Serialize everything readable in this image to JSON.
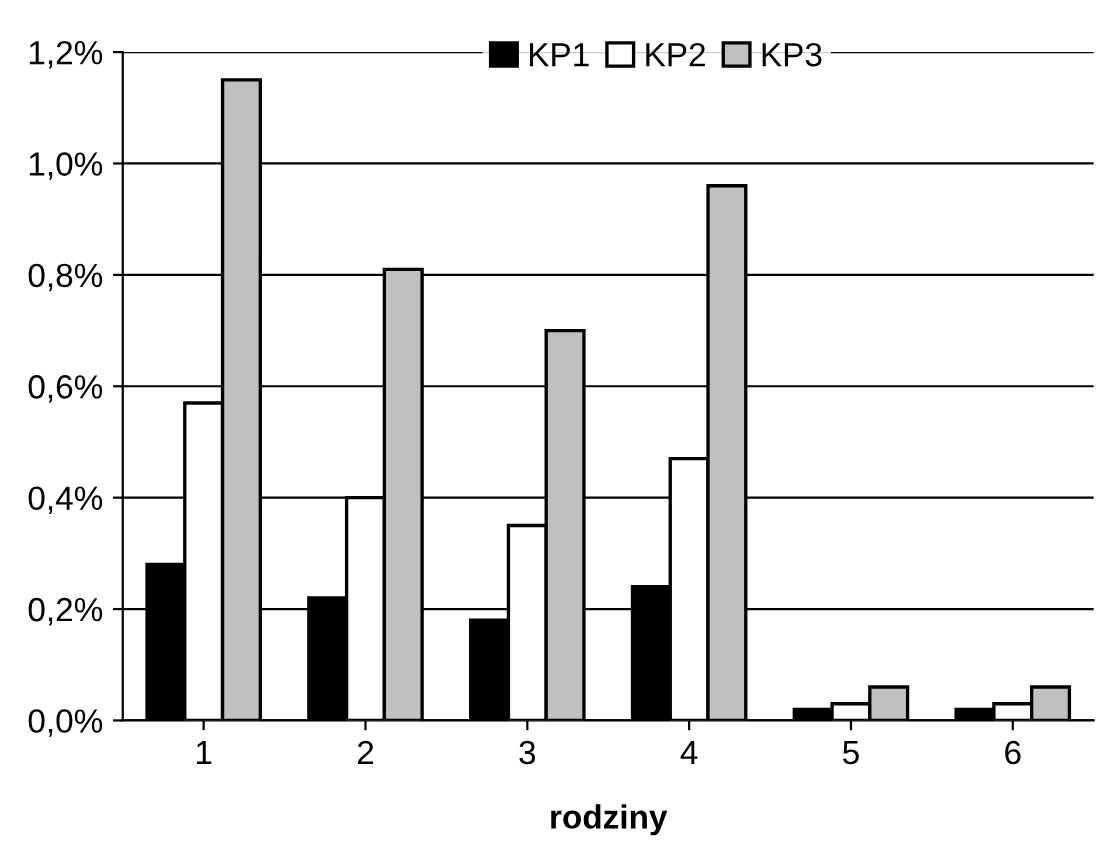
{
  "chart_data": {
    "type": "bar",
    "xlabel": "rodziny",
    "categories": [
      "1",
      "2",
      "3",
      "4",
      "5",
      "6"
    ],
    "series": [
      {
        "name": "KP1",
        "color": "#000000",
        "values": [
          0.28,
          0.22,
          0.18,
          0.24,
          0.02,
          0.02
        ]
      },
      {
        "name": "KP2",
        "color": "#ffffff",
        "values": [
          0.57,
          0.4,
          0.35,
          0.47,
          0.03,
          0.03
        ]
      },
      {
        "name": "KP3",
        "color": "#c0c0c0",
        "values": [
          1.15,
          0.81,
          0.7,
          0.96,
          0.06,
          0.06
        ]
      }
    ],
    "ylim": [
      0,
      1.2
    ],
    "yticks": [
      {
        "value": 0,
        "label": "0,0%"
      },
      {
        "value": 0.2,
        "label": "0,2%"
      },
      {
        "value": 0.4,
        "label": "0,4%"
      },
      {
        "value": 0.6,
        "label": "0,6%"
      },
      {
        "value": 0.8,
        "label": "0,8%"
      },
      {
        "value": 1.0,
        "label": "1,0%"
      },
      {
        "value": 1.2,
        "label": "1,2%"
      }
    ],
    "grid": "y",
    "legend": "top"
  }
}
